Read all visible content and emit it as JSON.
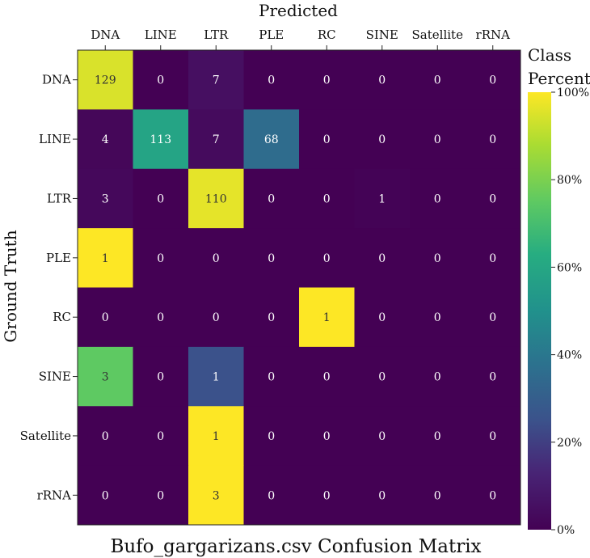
{
  "chart_data": {
    "type": "heatmap",
    "title": "Bufo_gargarizans.csv Confusion Matrix",
    "xlabel": "Predicted",
    "ylabel": "Ground Truth",
    "x_categories": [
      "DNA",
      "LINE",
      "LTR",
      "PLE",
      "RC",
      "SINE",
      "Satellite",
      "rRNA"
    ],
    "y_categories": [
      "DNA",
      "LINE",
      "LTR",
      "PLE",
      "RC",
      "SINE",
      "Satellite",
      "rRNA"
    ],
    "values": [
      [
        129,
        0,
        7,
        0,
        0,
        0,
        0,
        0
      ],
      [
        4,
        113,
        7,
        68,
        0,
        0,
        0,
        0
      ],
      [
        3,
        0,
        110,
        0,
        0,
        1,
        0,
        0
      ],
      [
        1,
        0,
        0,
        0,
        0,
        0,
        0,
        0
      ],
      [
        0,
        0,
        0,
        0,
        1,
        0,
        0,
        0
      ],
      [
        3,
        0,
        1,
        0,
        0,
        0,
        0,
        0
      ],
      [
        0,
        0,
        1,
        0,
        0,
        0,
        0,
        0
      ],
      [
        0,
        0,
        3,
        0,
        0,
        0,
        0,
        0
      ]
    ],
    "colorbar": {
      "title_lines": [
        "Class",
        "Percent"
      ],
      "range": [
        0,
        100
      ],
      "ticks": [
        0,
        20,
        40,
        60,
        80,
        100
      ],
      "tick_labels": [
        "0%",
        "20%",
        "40%",
        "60%",
        "80%",
        "100%"
      ],
      "colormap": "viridis"
    },
    "colors": {
      "low": "#440154",
      "high": "#fde725",
      "text_dark_bg": "#ffffff",
      "text_light_bg": "#333333"
    }
  }
}
